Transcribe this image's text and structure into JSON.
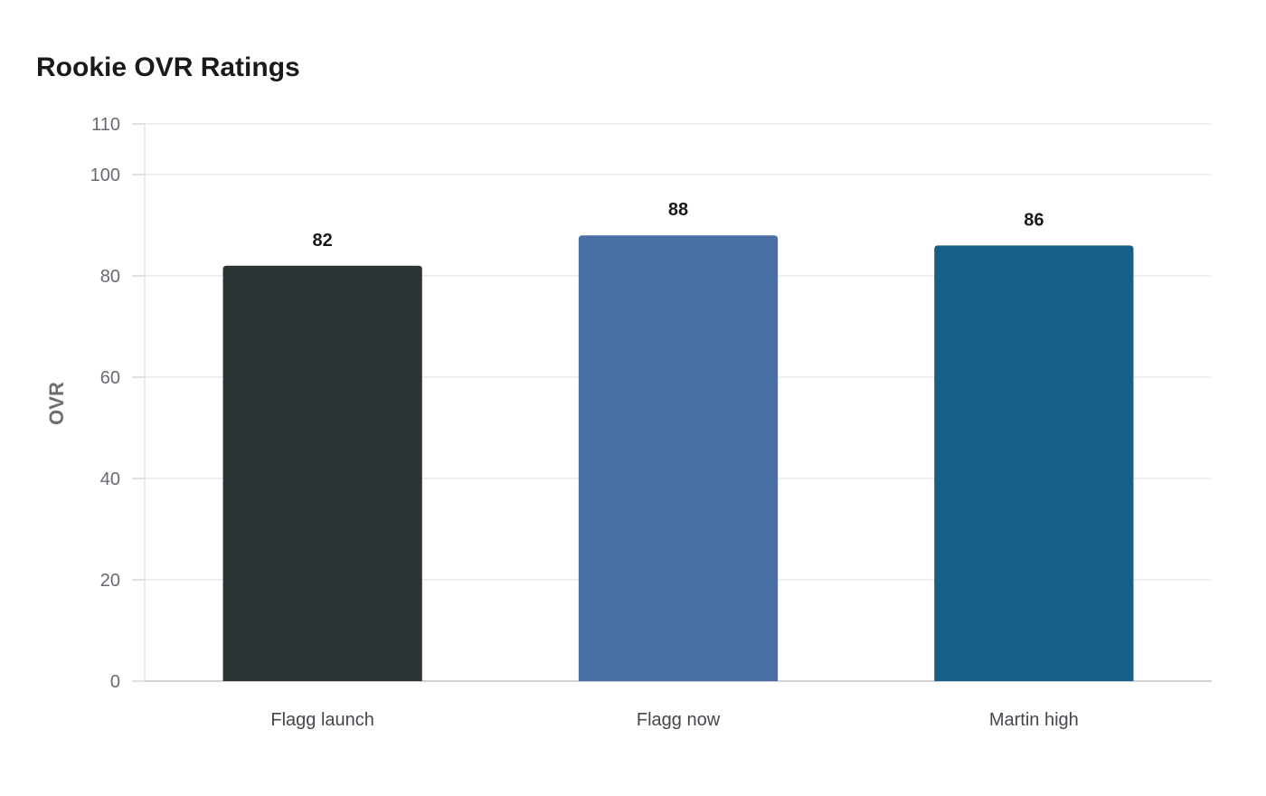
{
  "chart_data": {
    "type": "bar",
    "title": "Rookie OVR Ratings",
    "xlabel": "",
    "ylabel": "OVR",
    "categories": [
      "Flagg launch",
      "Flagg now",
      "Martin high"
    ],
    "values": [
      82,
      88,
      86
    ],
    "data_labels": [
      "82",
      "88",
      "86"
    ],
    "colors": [
      "#2d3436",
      "#4a6fa5",
      "#166088"
    ],
    "ylim": [
      0,
      110
    ],
    "yticks": [
      0,
      20,
      40,
      60,
      80,
      100,
      110
    ],
    "ytick_labels": [
      "0",
      "20",
      "40",
      "60",
      "80",
      "100",
      "110"
    ],
    "grid": true,
    "legend": "none"
  }
}
